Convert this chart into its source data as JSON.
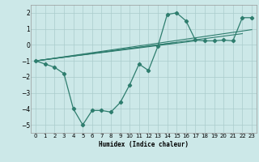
{
  "color": "#2e7d6e",
  "bg_color": "#cce8e8",
  "grid_color": "#aacccc",
  "xlabel": "Humidex (Indice chaleur)",
  "ylim": [
    -5.5,
    2.5
  ],
  "xlim": [
    -0.5,
    23.5
  ],
  "yticks": [
    -5,
    -4,
    -3,
    -2,
    -1,
    0,
    1,
    2
  ],
  "curve_x": [
    0,
    1,
    2,
    3,
    4,
    5,
    6,
    7,
    8,
    9,
    10,
    11,
    12,
    13,
    14,
    15,
    16,
    17,
    18,
    19,
    20,
    21,
    22,
    23
  ],
  "curve_y": [
    -1.0,
    -1.2,
    -1.4,
    -1.8,
    -4.0,
    -5.0,
    -4.1,
    -4.1,
    -4.2,
    -3.6,
    -2.5,
    -1.2,
    -1.6,
    -0.1,
    1.9,
    2.0,
    1.5,
    0.3,
    0.25,
    0.25,
    0.3,
    0.25,
    1.7,
    1.7
  ],
  "diag_lines": [
    {
      "x": [
        0,
        15
      ],
      "y": [
        -1.0,
        0.15
      ]
    },
    {
      "x": [
        0,
        23
      ],
      "y": [
        -1.0,
        0.95
      ]
    },
    {
      "x": [
        0,
        17
      ],
      "y": [
        -1.0,
        0.25
      ]
    },
    {
      "x": [
        0,
        22
      ],
      "y": [
        -1.0,
        0.7
      ]
    }
  ]
}
